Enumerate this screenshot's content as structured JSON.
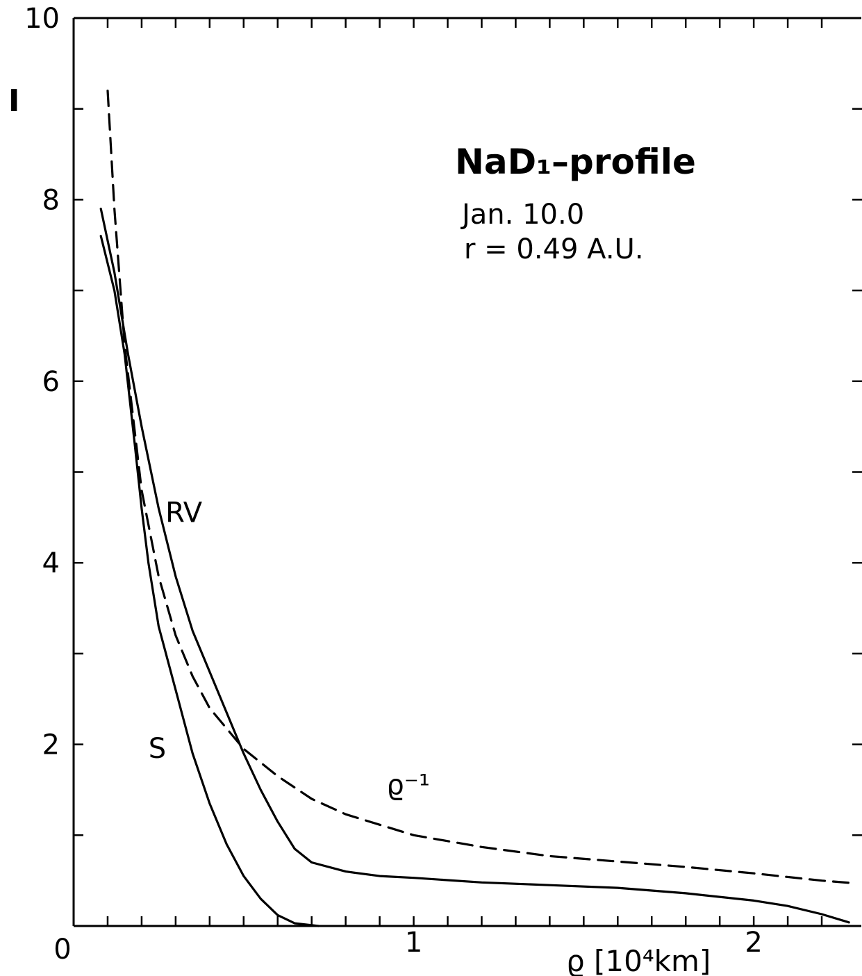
{
  "chart_data": {
    "type": "line",
    "title": "NaD₁–profile",
    "annotations": [
      "Jan. 10.0",
      "r = 0.49 A.U."
    ],
    "xlabel": "ϱ [10⁴km]",
    "ylabel": "I",
    "xlim": [
      0,
      2.3
    ],
    "ylim": [
      0,
      10
    ],
    "x_ticks": [
      0,
      1,
      2
    ],
    "y_ticks": [
      0,
      2,
      4,
      6,
      8,
      10
    ],
    "x_minor_ticks": [
      0.1,
      0.2,
      0.3,
      0.4,
      0.5,
      0.6,
      0.7,
      0.8,
      0.9,
      1.0,
      1.1,
      1.2,
      1.3,
      1.4,
      1.5,
      1.6,
      1.7,
      1.8,
      1.9,
      2.0,
      2.1,
      2.2
    ],
    "y_minor_ticks": [
      1,
      2,
      3,
      4,
      5,
      6,
      7,
      8,
      9
    ],
    "grid": false,
    "series": [
      {
        "name": "RV",
        "style": "solid",
        "label_pos": [
          0.27,
          4.45
        ],
        "points": [
          [
            0.08,
            7.9
          ],
          [
            0.12,
            7.2
          ],
          [
            0.16,
            6.3
          ],
          [
            0.2,
            5.5
          ],
          [
            0.25,
            4.6
          ],
          [
            0.3,
            3.85
          ],
          [
            0.35,
            3.25
          ],
          [
            0.4,
            2.8
          ],
          [
            0.45,
            2.35
          ],
          [
            0.5,
            1.9
          ],
          [
            0.55,
            1.5
          ],
          [
            0.6,
            1.15
          ],
          [
            0.65,
            0.85
          ],
          [
            0.7,
            0.7
          ],
          [
            0.8,
            0.6
          ],
          [
            0.9,
            0.55
          ],
          [
            1.0,
            0.53
          ],
          [
            1.2,
            0.48
          ],
          [
            1.4,
            0.45
          ],
          [
            1.6,
            0.42
          ],
          [
            1.8,
            0.36
          ],
          [
            2.0,
            0.28
          ],
          [
            2.1,
            0.22
          ],
          [
            2.2,
            0.13
          ],
          [
            2.28,
            0.04
          ]
        ]
      },
      {
        "name": "S",
        "style": "solid",
        "label_pos": [
          0.22,
          1.85
        ],
        "points": [
          [
            0.08,
            7.6
          ],
          [
            0.12,
            7.0
          ],
          [
            0.15,
            6.3
          ],
          [
            0.18,
            5.3
          ],
          [
            0.2,
            4.6
          ],
          [
            0.22,
            4.0
          ],
          [
            0.25,
            3.3
          ],
          [
            0.3,
            2.6
          ],
          [
            0.35,
            1.9
          ],
          [
            0.4,
            1.35
          ],
          [
            0.45,
            0.9
          ],
          [
            0.5,
            0.55
          ],
          [
            0.55,
            0.3
          ],
          [
            0.6,
            0.12
          ],
          [
            0.65,
            0.03
          ],
          [
            0.72,
            0.0
          ]
        ]
      },
      {
        "name": "ϱ⁻¹",
        "style": "dashed",
        "label_pos": [
          0.92,
          1.45
        ],
        "points": [
          [
            0.1,
            9.2
          ],
          [
            0.12,
            7.9
          ],
          [
            0.15,
            6.4
          ],
          [
            0.2,
            4.8
          ],
          [
            0.25,
            3.85
          ],
          [
            0.3,
            3.2
          ],
          [
            0.35,
            2.75
          ],
          [
            0.4,
            2.4
          ],
          [
            0.5,
            1.95
          ],
          [
            0.6,
            1.65
          ],
          [
            0.7,
            1.4
          ],
          [
            0.8,
            1.23
          ],
          [
            1.0,
            1.0
          ],
          [
            1.2,
            0.87
          ],
          [
            1.4,
            0.77
          ],
          [
            1.6,
            0.71
          ],
          [
            1.8,
            0.65
          ],
          [
            2.0,
            0.58
          ],
          [
            2.2,
            0.5
          ],
          [
            2.3,
            0.47
          ]
        ]
      }
    ]
  }
}
